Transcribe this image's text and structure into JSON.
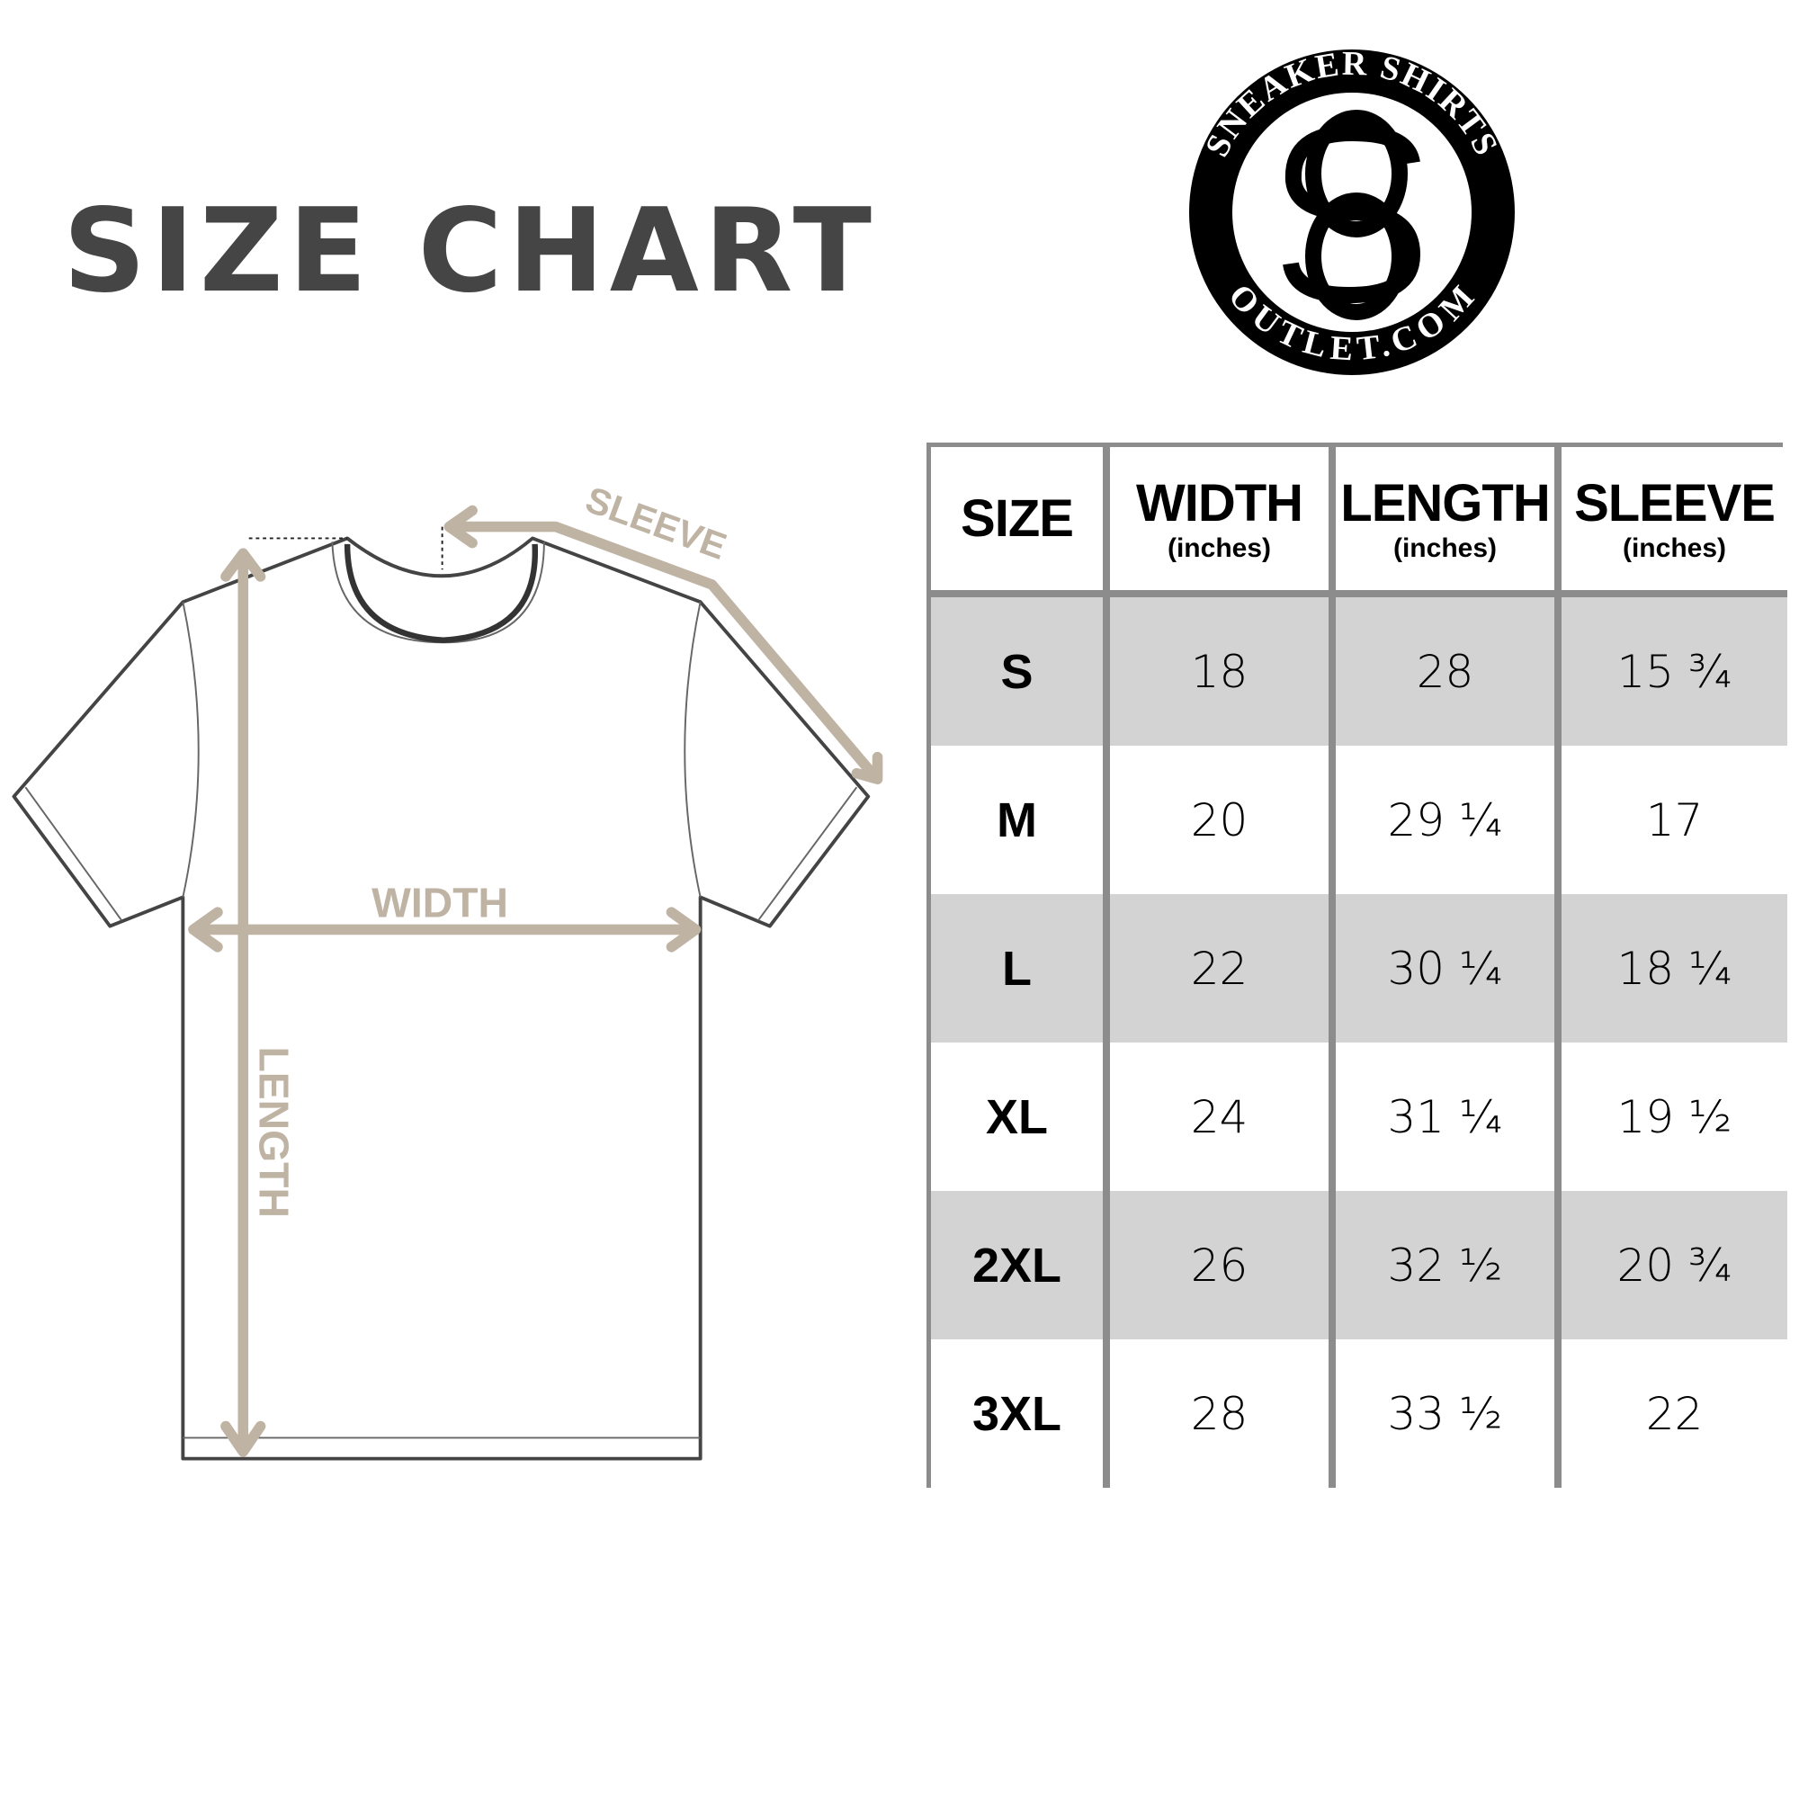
{
  "title": "SIZE CHART",
  "logo": {
    "top_text": "SNEAKER SHIRTS",
    "bottom_text": "OUTLET.COM",
    "monogram": "SO"
  },
  "diagram": {
    "sleeve_label": "SLEEVE",
    "width_label": "WIDTH",
    "length_label": "LENGTH"
  },
  "colors": {
    "title": "#454545",
    "arrow": "#bfb3a4",
    "table_border": "#8c8c8c",
    "row_shade": "#d3d3d3"
  },
  "table": {
    "headers": [
      {
        "label": "SIZE",
        "unit": ""
      },
      {
        "label": "WIDTH",
        "unit": "(inches)"
      },
      {
        "label": "LENGTH",
        "unit": "(inches)"
      },
      {
        "label": "SLEEVE",
        "unit": "(inches)"
      }
    ],
    "rows": [
      [
        "S",
        "18",
        "28",
        "15 ¾"
      ],
      [
        "M",
        "20",
        "29 ¼",
        "17"
      ],
      [
        "L",
        "22",
        "30 ¼",
        "18 ¼"
      ],
      [
        "XL",
        "24",
        "31 ¼",
        "19 ½"
      ],
      [
        "2XL",
        "26",
        "32 ½",
        "20 ¾"
      ],
      [
        "3XL",
        "28",
        "33 ½",
        "22"
      ]
    ]
  }
}
